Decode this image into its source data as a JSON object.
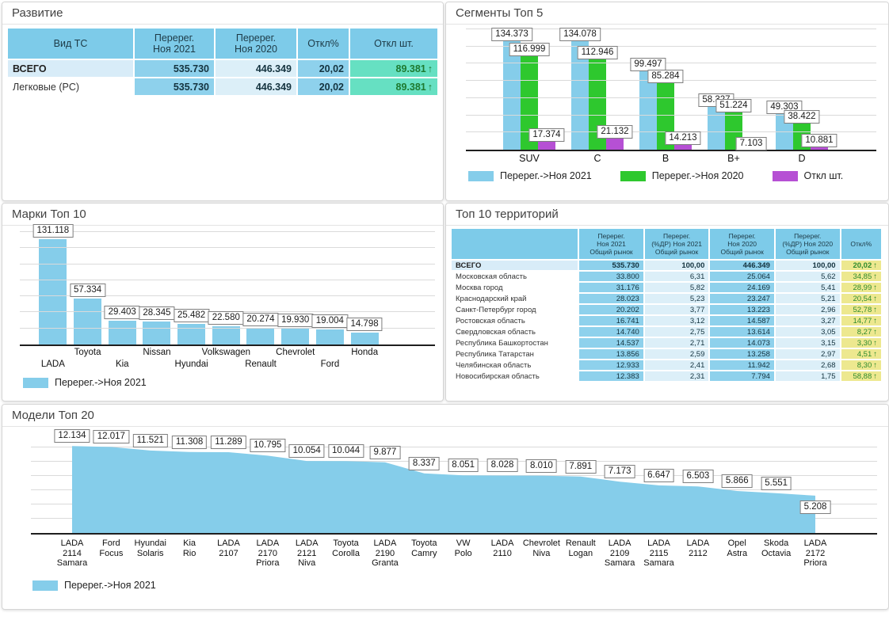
{
  "colors": {
    "series_2021": "#85cdea",
    "series_2020": "#2ec82e",
    "series_otkl": "#b650d4",
    "header_blue": "#7dcbe9",
    "cell_blue": "#8ed1ec",
    "cell_light": "#dceff8",
    "cell_teal": "#66e0c2",
    "cell_khaki": "#ede88f",
    "trend_green": "#2e8b2e"
  },
  "panels": {
    "razvitie": {
      "title": "Развитие",
      "table": {
        "headers": [
          "Вид ТС",
          "Перерег.\nНоя 2021",
          "Перерег.\nНоя 2020",
          "Откл%",
          "Откл шт."
        ],
        "rows": [
          {
            "label": "ВСЕГО",
            "reg2021": "535.730",
            "reg2020": "446.349",
            "otkl_pct": "20,02",
            "otkl_unit": "89.381",
            "trend": "↑",
            "total": true
          },
          {
            "label": "Легковые (PC)",
            "reg2021": "535.730",
            "reg2020": "446.349",
            "otkl_pct": "20,02",
            "otkl_unit": "89.381",
            "trend": "↑",
            "total": false
          }
        ]
      }
    },
    "segments": {
      "title": "Сегменты Топ 5"
    },
    "marki": {
      "title": "Марки Топ 10"
    },
    "territories": {
      "title": "Топ 10 территорий",
      "table": {
        "headers": [
          "",
          "Перерег.\nНоя 2021\nОбщий рынок",
          "Перерег.\n(%ДР) Ноя 2021\nОбщий рынок",
          "Перерег.\nНоя 2020\nОбщий рынок",
          "Перерег.\n(%ДР) Ноя 2020\nОбщий рынок",
          "Откл%"
        ],
        "rows": [
          {
            "label": "ВСЕГО",
            "v2021": "535.730",
            "share2021": "100,00",
            "v2020": "446.349",
            "share2020": "100,00",
            "otkl": "20,02",
            "trend": "↑",
            "total": true
          },
          {
            "label": "Московская область",
            "v2021": "33.800",
            "share2021": "6,31",
            "v2020": "25.064",
            "share2020": "5,62",
            "otkl": "34,85",
            "trend": "↑",
            "total": false
          },
          {
            "label": "Москва город",
            "v2021": "31.176",
            "share2021": "5,82",
            "v2020": "24.169",
            "share2020": "5,41",
            "otkl": "28,99",
            "trend": "↑",
            "total": false
          },
          {
            "label": "Краснодарский край",
            "v2021": "28.023",
            "share2021": "5,23",
            "v2020": "23.247",
            "share2020": "5,21",
            "otkl": "20,54",
            "trend": "↑",
            "total": false
          },
          {
            "label": "Санкт-Петербург город",
            "v2021": "20.202",
            "share2021": "3,77",
            "v2020": "13.223",
            "share2020": "2,96",
            "otkl": "52,78",
            "trend": "↑",
            "total": false
          },
          {
            "label": "Ростовская область",
            "v2021": "16.741",
            "share2021": "3,12",
            "v2020": "14.587",
            "share2020": "3,27",
            "otkl": "14,77",
            "trend": "↑",
            "total": false
          },
          {
            "label": "Свердловская область",
            "v2021": "14.740",
            "share2021": "2,75",
            "v2020": "13.614",
            "share2020": "3,05",
            "otkl": "8,27",
            "trend": "↑",
            "total": false
          },
          {
            "label": "Республика Башкортостан",
            "v2021": "14.537",
            "share2021": "2,71",
            "v2020": "14.073",
            "share2020": "3,15",
            "otkl": "3,30",
            "trend": "↑",
            "total": false
          },
          {
            "label": "Республика Татарстан",
            "v2021": "13.856",
            "share2021": "2,59",
            "v2020": "13.258",
            "share2020": "2,97",
            "otkl": "4,51",
            "trend": "↑",
            "total": false
          },
          {
            "label": "Челябинская область",
            "v2021": "12.933",
            "share2021": "2,41",
            "v2020": "11.942",
            "share2020": "2,68",
            "otkl": "8,30",
            "trend": "↑",
            "total": false
          },
          {
            "label": "Новосибирская область",
            "v2021": "12.383",
            "share2021": "2,31",
            "v2020": "7.794",
            "share2020": "1,75",
            "otkl": "58,88",
            "trend": "↑",
            "total": false
          }
        ]
      }
    },
    "models": {
      "title": "Модели Топ 20"
    }
  },
  "chart_data": [
    {
      "id": "segments",
      "type": "bar",
      "title": "Сегменты Топ 5",
      "categories": [
        "SUV",
        "C",
        "B",
        "B+",
        "D"
      ],
      "series": [
        {
          "name": "Перерег.->Ноя 2021",
          "color": "#85cdea",
          "values": [
            134373,
            134078,
            99497,
            58327,
            49303
          ],
          "labels": [
            "134.373",
            "134.078",
            "99.497",
            "58.327",
            "49.303"
          ]
        },
        {
          "name": "Перерег.->Ноя 2020",
          "color": "#2ec82e",
          "values": [
            116999,
            112946,
            85284,
            51224,
            38422
          ],
          "labels": [
            "116.999",
            "112.946",
            "85.284",
            "51.224",
            "38.422"
          ]
        },
        {
          "name": "Откл шт.",
          "color": "#b650d4",
          "values": [
            17374,
            21132,
            14213,
            7103,
            10881
          ],
          "labels": [
            "17.374",
            "21.132",
            "14.213",
            "7.103",
            "10.881"
          ]
        }
      ],
      "ylim": [
        0,
        140000
      ],
      "grid_step": 20000,
      "grid": true,
      "legend_position": "bottom"
    },
    {
      "id": "marki",
      "type": "bar",
      "title": "Марки Топ 10",
      "categories": [
        "LADA",
        "Toyota",
        "Kia",
        "Nissan",
        "Hyundai",
        "Volkswagen",
        "Renault",
        "Chevrolet",
        "Ford",
        "Honda"
      ],
      "series": [
        {
          "name": "Перерег.->Ноя 2021",
          "color": "#85cdea",
          "values": [
            131118,
            57334,
            29403,
            28345,
            25482,
            22580,
            20274,
            19930,
            19004,
            14798
          ],
          "labels": [
            "131.118",
            "57.334",
            "29.403",
            "28.345",
            "25.482",
            "22.580",
            "20.274",
            "19.930",
            "19.004",
            "14.798"
          ]
        }
      ],
      "ylim": [
        0,
        140000
      ],
      "grid_step": 20000,
      "grid": true,
      "legend_position": "bottom"
    },
    {
      "id": "models",
      "type": "area",
      "title": "Модели Топ 20",
      "categories": [
        "LADA\n2114\nSamara",
        "Ford\nFocus",
        "Hyundai\nSolaris",
        "Kia\nRio",
        "LADA\n2107",
        "LADA\n2170\nPriora",
        "LADA\n2121\nNiva",
        "Toyota\nCorolla",
        "LADA\n2190\nGranta",
        "Toyota\nCamry",
        "VW\nPolo",
        "LADA\n2110",
        "Chevrolet\nNiva",
        "Renault\nLogan",
        "LADA\n2109\nSamara",
        "LADA\n2115\nSamara",
        "LADA\n2112",
        "Opel\nAstra",
        "Skoda\nOctavia",
        "LADA\n2172\nPriora"
      ],
      "series": [
        {
          "name": "Перерег.->Ноя 2021",
          "color": "#85cdea",
          "values": [
            12134,
            12017,
            11521,
            11308,
            11289,
            10795,
            10054,
            10044,
            9877,
            8337,
            8051,
            8028,
            8010,
            7891,
            7173,
            6647,
            6503,
            5866,
            5551,
            5208
          ],
          "labels": [
            "12.134",
            "12.017",
            "11.521",
            "11.308",
            "11.289",
            "10.795",
            "10.054",
            "10.044",
            "9.877",
            "8.337",
            "8.051",
            "8.028",
            "8.010",
            "7.891",
            "7.173",
            "6.647",
            "6.503",
            "5.866",
            "5.551",
            "5.208"
          ]
        }
      ],
      "ylim": [
        0,
        13500
      ],
      "grid_step": 2000,
      "grid": true,
      "legend_position": "bottom"
    }
  ]
}
